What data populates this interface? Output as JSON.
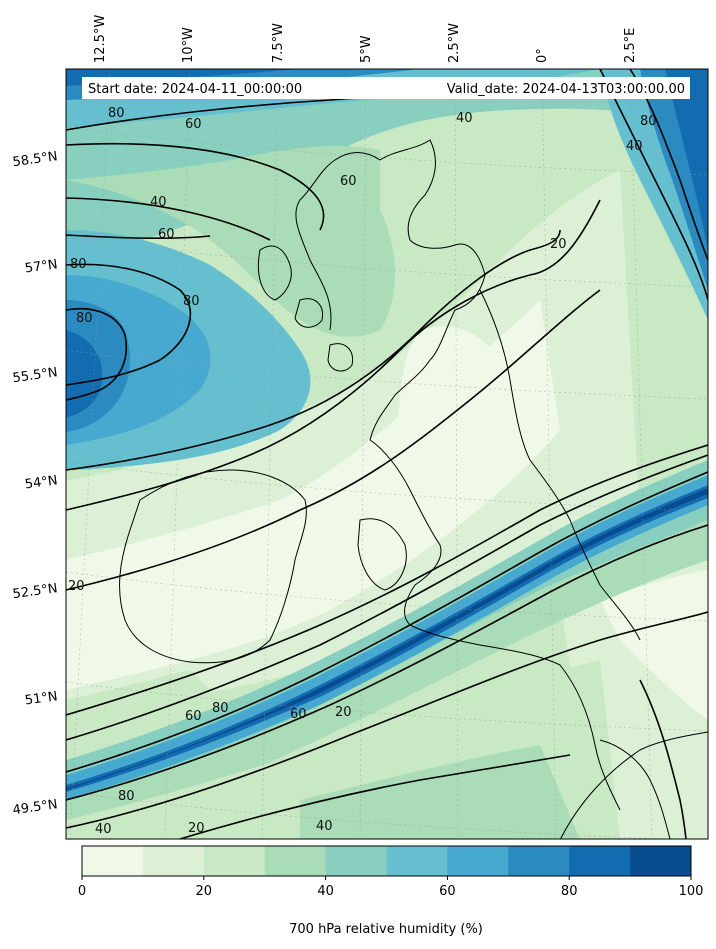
{
  "header": {
    "start_date": "Start date: 2024-04-11_00:00:00",
    "valid_date": "Valid_date: 2024-04-13T03:00:00.00"
  },
  "map": {
    "top_ticks": [
      "12.5°W",
      "10°W",
      "7.5°W",
      "5°W",
      "2.5°W",
      "0°",
      "2.5°E"
    ],
    "left_ticks": [
      "58.5°N",
      "57°N",
      "55.5°N",
      "54°N",
      "52.5°N",
      "51°N",
      "49.5°N"
    ],
    "contour_labels": [
      "80",
      "60",
      "40",
      "60",
      "80",
      "80",
      "80",
      "60",
      "40",
      "20",
      "40",
      "80",
      "20",
      "60",
      "80",
      "60",
      "20",
      "80",
      "40",
      "20",
      "40"
    ]
  },
  "colorbar": {
    "label": "700 hPa relative humidity (%)",
    "ticks": [
      "0",
      "20",
      "40",
      "60",
      "80",
      "100"
    ],
    "colors": [
      "#f0f9e8",
      "#dcf0d6",
      "#c8e9c3",
      "#a9dcb7",
      "#88cfbf",
      "#66bfcf",
      "#47a8d0",
      "#2b8bc1",
      "#146cb0",
      "#084c91"
    ]
  }
}
